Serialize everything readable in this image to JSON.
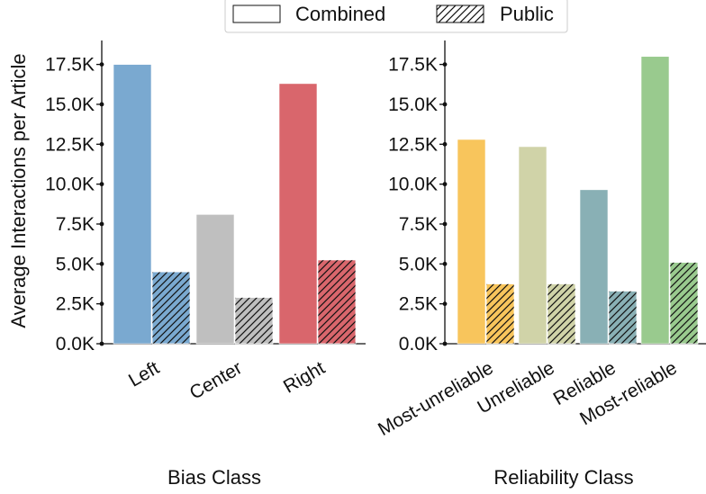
{
  "legend": {
    "items": [
      {
        "label": "Combined",
        "hatched": false
      },
      {
        "label": "Public",
        "hatched": true
      }
    ]
  },
  "ylabel": "Average Interactions per Article",
  "chart_data": [
    {
      "type": "bar",
      "xlabel": "Bias Class",
      "ylabel": "Average Interactions per Article",
      "ylim": [
        0,
        19000
      ],
      "yticks": [
        "0.0K",
        "2.5K",
        "5.0K",
        "7.5K",
        "10.0K",
        "12.5K",
        "15.0K",
        "17.5K"
      ],
      "ytick_values": [
        0,
        2500,
        5000,
        7500,
        10000,
        12500,
        15000,
        17500
      ],
      "categories": [
        "Left",
        "Center",
        "Right"
      ],
      "colors": [
        "#7aa9d0",
        "#bfbfbf",
        "#d9666c"
      ],
      "series": [
        {
          "name": "Combined",
          "values": [
            17500,
            8100,
            16300
          ]
        },
        {
          "name": "Public",
          "values": [
            4500,
            2900,
            5250
          ]
        }
      ]
    },
    {
      "type": "bar",
      "xlabel": "Reliability Class",
      "ylabel": "",
      "ylim": [
        0,
        19000
      ],
      "yticks": [
        "0.0K",
        "2.5K",
        "5.0K",
        "7.5K",
        "10.0K",
        "12.5K",
        "15.0K",
        "17.5K"
      ],
      "ytick_values": [
        0,
        2500,
        5000,
        7500,
        10000,
        12500,
        15000,
        17500
      ],
      "categories": [
        "Most-unreliable",
        "Unreliable",
        "Reliable",
        "Most-reliable"
      ],
      "colors": [
        "#f8c55c",
        "#d0d3a8",
        "#89b0b5",
        "#99ca8e"
      ],
      "series": [
        {
          "name": "Combined",
          "values": [
            12800,
            12350,
            9650,
            18000
          ]
        },
        {
          "name": "Public",
          "values": [
            3750,
            3750,
            3300,
            5100
          ]
        }
      ]
    }
  ]
}
